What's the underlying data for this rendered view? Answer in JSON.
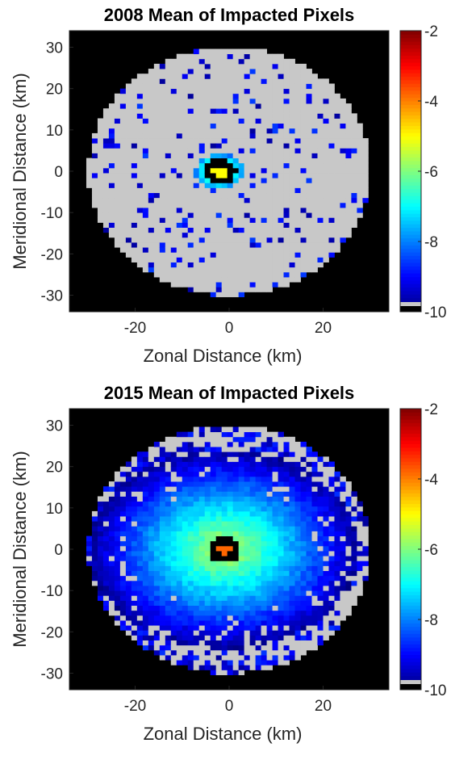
{
  "chart_data": [
    {
      "type": "heatmap",
      "title": "2008 Mean of Impacted Pixels",
      "xlabel": "Zonal Distance (km)",
      "ylabel": "Meridional Distance (km)",
      "xlim": [
        -34,
        34
      ],
      "ylim": [
        -34,
        34
      ],
      "xticks": [
        -20,
        0,
        20
      ],
      "yticks": [
        30,
        20,
        10,
        0,
        -10,
        -20,
        -30
      ],
      "colorbar": {
        "ticks": [
          -2,
          -4,
          -6,
          -8,
          -10
        ],
        "range": [
          -10,
          -2
        ],
        "colormap": "jet"
      },
      "background_color": "#000000",
      "no_data_color": "#c8c8c8",
      "domain_radius_km": 30,
      "center_km": [
        -2,
        0
      ],
      "core": {
        "radius_km": 3,
        "color": "#000000",
        "inner_value": -5
      },
      "halo": {
        "outer_radius_km": 4.3,
        "values": [
          -7,
          -8
        ]
      },
      "scatter_density": 0.09,
      "scatter_values": [
        -8.5,
        -9.8
      ]
    },
    {
      "type": "heatmap",
      "title": "2015 Mean of Impacted Pixels",
      "xlabel": "Zonal Distance (km)",
      "ylabel": "Meridional Distance (km)",
      "xlim": [
        -34,
        34
      ],
      "ylim": [
        -34,
        34
      ],
      "xticks": [
        -20,
        0,
        20
      ],
      "yticks": [
        30,
        20,
        10,
        0,
        -10,
        -20,
        -30
      ],
      "colorbar": {
        "ticks": [
          -2,
          -4,
          -6,
          -8,
          -10
        ],
        "range": [
          -10,
          -2
        ],
        "colormap": "jet"
      },
      "background_color": "#000000",
      "no_data_color": "#c8c8c8",
      "domain_radius_km": 30,
      "center_km": [
        -1,
        0
      ],
      "core": {
        "radius_km": 3,
        "color": "#000000",
        "inner_value": -3.8
      },
      "halo": {
        "outer_radius_km": 24,
        "values": [
          -6,
          -9.8
        ]
      },
      "scatter_density": 0.45,
      "scatter_values": [
        -8.6,
        -9.8
      ]
    }
  ]
}
